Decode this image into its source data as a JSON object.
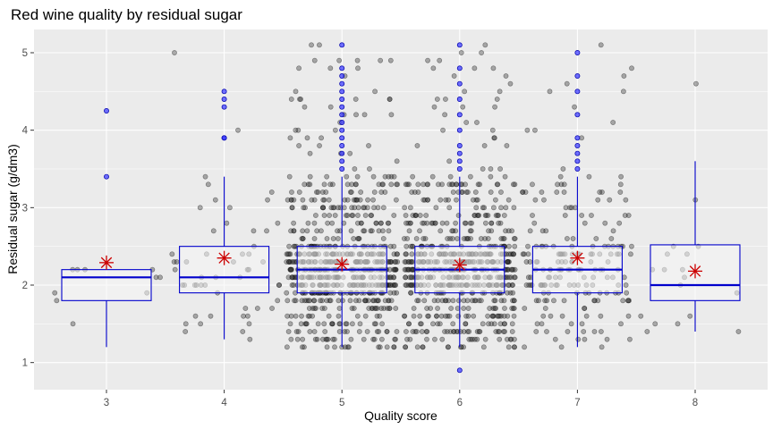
{
  "chart_data": {
    "type": "boxplot",
    "title": "Red wine quality by residual sugar",
    "xlabel": "Quality score",
    "ylabel": "Residual sugar (g/dm3)",
    "categories": [
      "3",
      "4",
      "5",
      "6",
      "7",
      "8"
    ],
    "yticks": [
      1,
      2,
      3,
      4,
      5
    ],
    "ylim": [
      0.65,
      5.3
    ],
    "grid": true,
    "legend": "none",
    "colors": {
      "panel": "#ebebeb",
      "grid_major": "#ffffff",
      "box_stroke": "#0000cc",
      "box_fill": "#f5f5f5",
      "mean_marker": "#cc0000",
      "outlier": "#3333ff",
      "jitter": "#333333"
    },
    "boxes": [
      {
        "category": "3",
        "whisker_low": 1.2,
        "q1": 1.8,
        "median": 2.1,
        "q3": 2.2,
        "whisker_high": 2.2,
        "mean": 2.29,
        "outliers": [
          3.4,
          4.25
        ]
      },
      {
        "category": "4",
        "whisker_low": 1.3,
        "q1": 1.9,
        "median": 2.1,
        "q3": 2.5,
        "whisker_high": 3.4,
        "mean": 2.35,
        "outliers": [
          3.9,
          3.9,
          4.3,
          4.4,
          4.5
        ]
      },
      {
        "category": "5",
        "whisker_low": 1.2,
        "q1": 1.9,
        "median": 2.2,
        "q3": 2.5,
        "whisker_high": 3.4,
        "mean": 2.27,
        "outliers": [
          3.5,
          3.6,
          3.7,
          3.8,
          3.9,
          4.0,
          4.1,
          4.2,
          4.3,
          4.4,
          4.5,
          4.6,
          4.7,
          4.8,
          5.1
        ]
      },
      {
        "category": "6",
        "whisker_low": 1.2,
        "q1": 1.9,
        "median": 2.2,
        "q3": 2.5,
        "whisker_high": 3.4,
        "mean": 2.26,
        "outliers": [
          0.9,
          3.5,
          3.6,
          3.7,
          3.8,
          4.0,
          4.2,
          4.4,
          4.6,
          4.8,
          5.1
        ]
      },
      {
        "category": "7",
        "whisker_low": 1.2,
        "q1": 1.9,
        "median": 2.2,
        "q3": 2.5,
        "whisker_high": 3.4,
        "mean": 2.35,
        "outliers": [
          3.5,
          3.6,
          3.7,
          3.8,
          3.9,
          4.2,
          4.5,
          4.7,
          5.0
        ]
      },
      {
        "category": "8",
        "whisker_low": 1.4,
        "q1": 1.8,
        "median": 2.0,
        "q3": 2.52,
        "whisker_high": 3.6,
        "mean": 2.18,
        "outliers": []
      }
    ]
  }
}
